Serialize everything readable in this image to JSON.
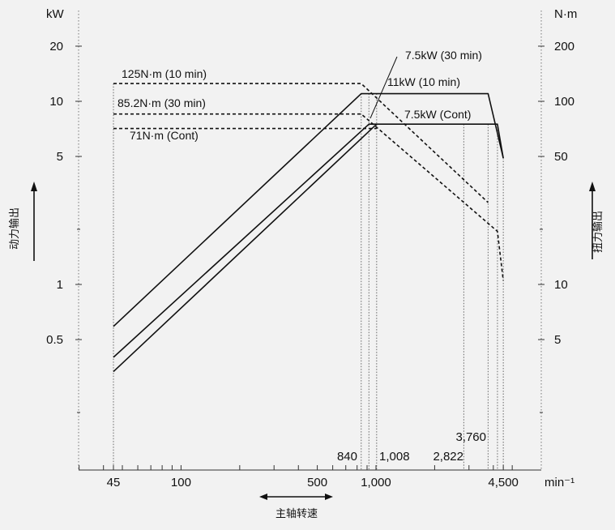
{
  "chart_data": {
    "type": "line",
    "title": "",
    "x_scale": "log",
    "y_scale": "log",
    "xlim": [
      20,
      6000
    ],
    "ylim_left": [
      0.15,
      30
    ],
    "ylim_right": [
      1.5,
      300
    ],
    "units": {
      "left": "kW",
      "right": "N·m",
      "bottom": "min⁻¹"
    },
    "axis_titles": {
      "left": "动力输出",
      "right": "扭力输出",
      "bottom": "主轴转速"
    },
    "left_ticks": [
      {
        "value": 20,
        "label": "20"
      },
      {
        "value": 10,
        "label": "10"
      },
      {
        "value": 5,
        "label": "5"
      },
      {
        "value": 1,
        "label": "1"
      },
      {
        "value": 0.5,
        "label": "0.5"
      }
    ],
    "right_ticks": [
      {
        "value": 200,
        "label": "200"
      },
      {
        "value": 100,
        "label": "100"
      },
      {
        "value": 50,
        "label": "50"
      },
      {
        "value": 10,
        "label": "10"
      },
      {
        "value": 5,
        "label": "5"
      }
    ],
    "bottom_ticks": [
      {
        "value": 45,
        "label": "45"
      },
      {
        "value": 100,
        "label": "100"
      },
      {
        "value": 500,
        "label": "500"
      },
      {
        "value": 1000,
        "label": "1,000"
      },
      {
        "value": 4500,
        "label": "4,500"
      }
    ],
    "speed_labels": [
      {
        "value": 840,
        "label": "840"
      },
      {
        "value": 1008,
        "label": "1,008"
      },
      {
        "value": 2822,
        "label": "2,822"
      },
      {
        "value": 3760,
        "label": "3,760"
      }
    ],
    "power_series": [
      {
        "name": "11kW (10 min)",
        "points": [
          [
            45,
            0.59
          ],
          [
            840,
            11
          ],
          [
            3760,
            11
          ],
          [
            4500,
            4.9
          ]
        ]
      },
      {
        "name": "7.5kW (30 min)",
        "points": [
          [
            45,
            0.4
          ],
          [
            920,
            7.5
          ],
          [
            1008,
            7.5
          ]
        ]
      },
      {
        "name": "7.5kW (Cont)",
        "points": [
          [
            45,
            0.334
          ],
          [
            1008,
            7.5
          ],
          [
            4200,
            7.5
          ],
          [
            4500,
            4.9
          ]
        ]
      }
    ],
    "torque_series": [
      {
        "name": "125N·m (10 min)",
        "points": [
          [
            45,
            125
          ],
          [
            840,
            125
          ],
          [
            3760,
            28
          ]
        ]
      },
      {
        "name": "85.2N·m (30 min)",
        "points": [
          [
            45,
            85.2
          ],
          [
            840,
            85.2
          ],
          [
            4200,
            19.5
          ],
          [
            4500,
            10.5
          ]
        ]
      },
      {
        "name": "71N·m (Cont)",
        "points": [
          [
            45,
            71
          ],
          [
            1008,
            71
          ]
        ]
      }
    ],
    "vertical_lines": [
      25,
      45,
      840,
      920,
      1008,
      2822,
      3760,
      4200,
      4500
    ],
    "grid": false
  }
}
